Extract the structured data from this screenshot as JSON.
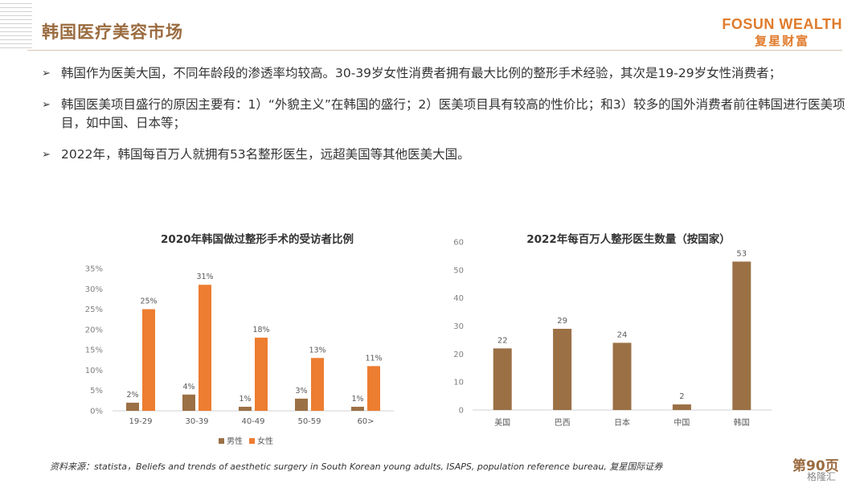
{
  "header": {
    "title": "韩国医疗美容市场",
    "logo_en": "FOSUN WEALTH",
    "logo_cn": "复星财富"
  },
  "bullets": [
    {
      "text": "韩国作为医美大国，不同年龄段的渗透率均较高。30-39岁女性消费者拥有最大比例的整形手术经验，其次是19-29岁女性消费者；"
    },
    {
      "text": "韩国医美项目盛行的原因主要有：1）“外貌主义”在韩国的盛行；2）医美项目具有较高的性价比；和3）较多的国外消费者前往韩国进行医美项目，如中国、日本等；"
    },
    {
      "text": "2022年，韩国每百万人就拥有53名整形医生，远超美国等其他医美大国。"
    }
  ],
  "chart_data": [
    {
      "type": "bar",
      "title": "2020年韩国做过整形手术的受访者比例",
      "categories": [
        "19-29",
        "30-39",
        "40-49",
        "50-59",
        "60>"
      ],
      "series": [
        {
          "name": "男性",
          "values": [
            2,
            4,
            1,
            3,
            1
          ],
          "labels": [
            "2%",
            "4%",
            "1%",
            "3%",
            "1%"
          ],
          "color": "#9b7045"
        },
        {
          "name": "女性",
          "values": [
            25,
            31,
            18,
            13,
            11
          ],
          "labels": [
            "25%",
            "31%",
            "18%",
            "13%",
            "11%"
          ],
          "color": "#ed7d31"
        }
      ],
      "yticks": [
        "0%",
        "5%",
        "10%",
        "15%",
        "20%",
        "25%",
        "30%",
        "35%"
      ],
      "ylim": [
        0,
        35
      ],
      "legend": "bottom",
      "grid": false
    },
    {
      "type": "bar",
      "title": "2022年每百万人整形医生数量（按国家）",
      "categories": [
        "美国",
        "巴西",
        "日本",
        "中国",
        "韩国"
      ],
      "values": [
        22,
        29,
        24,
        2,
        53
      ],
      "color": "#9b7045",
      "yticks": [
        "0",
        "10",
        "20",
        "30",
        "40",
        "50",
        "60"
      ],
      "ylim": [
        0,
        60
      ],
      "grid": false
    }
  ],
  "footer": {
    "source": "资料来源：statista，Beliefs and trends of aesthetic surgery in South Korean young adults, ISAPS, population reference bureau, 复星国际证券",
    "page": "第90页",
    "watermark": "格隆汇"
  }
}
